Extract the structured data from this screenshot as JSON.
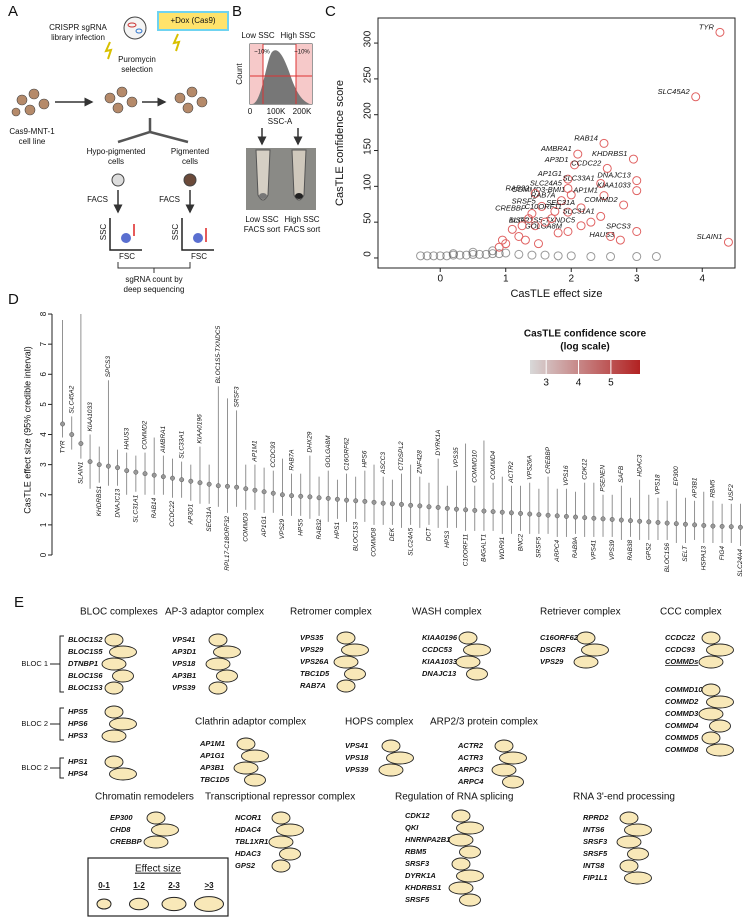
{
  "panel_a": {
    "label": "A",
    "infection": [
      "CRISPR sgRNA",
      "library infection"
    ],
    "dox": "+Dox (Cas9)",
    "selection": [
      "Puromycin",
      "selection"
    ],
    "cell_line": [
      "Cas9-MNT-1",
      "cell line"
    ],
    "hypo": [
      "Hypo-pigmented",
      "cells"
    ],
    "pigmented": [
      "Pigmented",
      "cells"
    ],
    "facs": [
      "FACS",
      "FACS"
    ],
    "ssc": [
      "SSC",
      "SSC"
    ],
    "fsc": [
      "FSC",
      "FSC"
    ],
    "sequencing": [
      "sgRNA count by",
      "deep sequencing"
    ]
  },
  "panel_b": {
    "label": "B",
    "low": "Low SSC",
    "high": "High SSC",
    "count": "Count",
    "fractions": [
      "~10%",
      "~10%"
    ],
    "xticks": [
      "0",
      "100K",
      "200K"
    ],
    "xlabel": "SSC-A",
    "sort_low": [
      "Low SSC",
      "FACS sort"
    ],
    "sort_high": [
      "High SSC",
      "FACS sort"
    ]
  },
  "chart_data": [
    {
      "type": "scatter",
      "panel_label": "C",
      "xlabel": "CasTLE effect size",
      "ylabel": "CasTLE confidence score",
      "xlim": [
        -0.95,
        4.5
      ],
      "ylim": [
        -14,
        335
      ],
      "xticks": [
        0,
        1,
        2,
        3,
        4
      ],
      "yticks": [
        0,
        50,
        100,
        150,
        200,
        250,
        300
      ],
      "series": [
        {
          "color": "#e06262",
          "x": [
            4.27,
            3.9,
            2.5,
            2.1,
            2.95,
            2.05,
            2.55,
            1.95,
            3.0,
            2.45,
            1.95,
            3.0,
            2.0,
            2.5,
            1.45,
            1.85,
            2.8,
            1.55,
            2.15,
            1.95,
            1.4,
            2.45,
            1.45,
            2.15,
            1.95,
            3.0,
            2.75,
            4.4,
            1.0,
            1.2,
            1.3,
            0.9,
            1.1,
            1.6,
            1.7,
            1.8,
            1.5,
            1.25,
            2.3,
            2.6,
            1.75,
            1.35,
            0.95
          ],
          "y": [
            315,
            225,
            160,
            145,
            138,
            130,
            125,
            110,
            108,
            104,
            97,
            94,
            88,
            87,
            90,
            80,
            74,
            72,
            70,
            64,
            62,
            58,
            45,
            45,
            37,
            37,
            25,
            22,
            20,
            30,
            25,
            15,
            40,
            50,
            55,
            35,
            20,
            45,
            50,
            30,
            65,
            55,
            25
          ],
          "labels": [
            "TYR",
            "SLC45A2",
            "RAB14",
            "AMBRA1",
            "KHDRBS1",
            "AP3D1",
            "CCDC22",
            "AP1G1",
            "DNAJC13",
            "SLC33A1",
            "SLC24A5",
            "KIAA1033",
            "COMMD3-BMI1",
            "AP1M1",
            "RAB32",
            "RAB7A",
            "COMMD2",
            "SRSF5",
            "SEC31A",
            "C10ORF11",
            "CREBBP",
            "SLC31A1",
            "USF2",
            "BLOC1S5-TXNDC5",
            "GOLGA8M",
            "SPCS3",
            "HAUS3",
            "SLAIN1",
            null,
            null,
            null,
            null,
            null,
            null,
            null,
            null,
            null,
            null,
            null,
            null,
            null,
            null,
            null
          ]
        },
        {
          "color": "#555555",
          "x": [
            -0.3,
            -0.2,
            -0.1,
            0,
            0.1,
            0.2,
            0.3,
            0.4,
            0.5,
            0.6,
            0.7,
            0.8,
            0.9,
            1.0,
            1.2,
            1.4,
            1.6,
            1.8,
            2.0,
            2.3,
            2.6,
            3.0,
            3.3,
            0.2,
            0.5,
            0.8
          ],
          "y": [
            3,
            3,
            3,
            3,
            3,
            4,
            4,
            4,
            5,
            5,
            5,
            6,
            6,
            7,
            5,
            4,
            4,
            3,
            3,
            2,
            2,
            2,
            2,
            6,
            8,
            10
          ]
        }
      ]
    },
    {
      "type": "errorbar",
      "panel_label": "D",
      "ylabel": "CasTLE effect size (95% credible interval)",
      "ylim": [
        0,
        8.3
      ],
      "yticks": [
        0,
        1,
        2,
        3,
        4,
        5,
        6,
        7,
        8
      ],
      "color": "#999999",
      "categories": [
        "TYR",
        "SLC45A2",
        "SLAIN1",
        "KIAA1033",
        "KHDRBS1",
        "SPCS3",
        "DNAJC13",
        "HAUS3",
        "SLC31A1",
        "COMMD2",
        "RAB14",
        "AMBRA1",
        "CCDC22",
        "SLC33A1",
        "AP3D1",
        "KIAA0196",
        "SEC31A",
        "BLOC1S5-TXNDC5",
        "RPL17-C18ORF32",
        "SRSF3",
        "COMMD3",
        "AP1M1",
        "AP1G1",
        "CCDC93",
        "VPS29",
        "RAB7A",
        "HPS5",
        "DHX29",
        "RAB32",
        "GOLGA8M",
        "HPS1",
        "C16ORF62",
        "BLOC1S3",
        "HPS6",
        "COMMD8",
        "ASCC3",
        "DEK",
        "CTDSPL2",
        "SLC24A5",
        "ZNF428",
        "DCT",
        "DYRK1A",
        "HPS3",
        "VPS35",
        "C10ORF11",
        "COMMD10",
        "B4GALT1",
        "COMMD4",
        "WDR91",
        "ACTR2",
        "BNC2",
        "VPS26A",
        "SRSF5",
        "CREBBP",
        "ARPC4",
        "VPS16",
        "RAB9A",
        "CDK12",
        "VPS41",
        "PSENEN",
        "VPS39",
        "SAFB",
        "RAB38",
        "HDAC3",
        "GPS2",
        "VPS18",
        "BLOC1S6",
        "EP300",
        "SELT",
        "AP3B1",
        "HSPA13",
        "RBM5",
        "FIG4",
        "USF2",
        "SLC24A4"
      ],
      "values": [
        4.35,
        4.0,
        3.7,
        3.1,
        3.0,
        2.95,
        2.9,
        2.8,
        2.75,
        2.7,
        2.65,
        2.6,
        2.55,
        2.5,
        2.45,
        2.4,
        2.35,
        2.3,
        2.28,
        2.25,
        2.2,
        2.15,
        2.1,
        2.05,
        2.0,
        1.97,
        1.95,
        1.93,
        1.9,
        1.88,
        1.85,
        1.82,
        1.8,
        1.78,
        1.75,
        1.72,
        1.7,
        1.68,
        1.65,
        1.63,
        1.6,
        1.58,
        1.55,
        1.52,
        1.5,
        1.48,
        1.46,
        1.44,
        1.42,
        1.4,
        1.38,
        1.36,
        1.34,
        1.32,
        1.3,
        1.28,
        1.26,
        1.24,
        1.22,
        1.2,
        1.18,
        1.16,
        1.14,
        1.12,
        1.1,
        1.08,
        1.06,
        1.04,
        1.02,
        1.0,
        0.98,
        0.96,
        0.95,
        0.94,
        0.92
      ],
      "low": [
        3.9,
        3.5,
        3.2,
        2.2,
        2.4,
        2.3,
        2.3,
        2.0,
        2.1,
        2.0,
        2.0,
        2.0,
        1.9,
        1.9,
        1.8,
        1.7,
        1.7,
        1.6,
        1.4,
        1.6,
        1.5,
        1.5,
        1.4,
        1.4,
        1.3,
        1.3,
        1.3,
        1.2,
        1.3,
        1.1,
        1.2,
        1.1,
        1.2,
        1.1,
        1.0,
        1.0,
        1.0,
        0.9,
        1.0,
        0.9,
        1.0,
        0.9,
        0.9,
        0.9,
        0.8,
        0.8,
        0.8,
        0.8,
        0.7,
        0.7,
        0.8,
        0.7,
        0.7,
        0.7,
        0.6,
        0.6,
        0.7,
        0.6,
        0.6,
        0.6,
        0.6,
        0.5,
        0.6,
        0.5,
        0.5,
        0.5,
        0.5,
        0.4,
        0.4,
        0.5,
        0.4,
        0.4,
        0.4,
        0.4,
        0.3
      ],
      "high": [
        7.8,
        4.6,
        8.0,
        4.0,
        3.6,
        5.8,
        3.5,
        3.4,
        3.3,
        3.4,
        3.9,
        3.3,
        3.2,
        3.1,
        3.0,
        3.6,
        3.0,
        5.6,
        5.2,
        4.8,
        3.0,
        3.0,
        2.9,
        2.8,
        3.2,
        2.7,
        2.7,
        3.3,
        2.6,
        2.8,
        2.5,
        2.7,
        2.6,
        2.8,
        3.0,
        2.6,
        2.5,
        2.7,
        3.0,
        2.6,
        2.4,
        3.2,
        2.3,
        2.8,
        3.7,
        2.3,
        3.8,
        2.4,
        2.6,
        2.3,
        2.3,
        2.4,
        2.2,
        2.6,
        2.2,
        2.2,
        2.1,
        2.4,
        2.4,
        2.0,
        2.0,
        2.3,
        1.9,
        2.5,
        2.0,
        1.9,
        1.8,
        2.2,
        1.9,
        1.8,
        2.1,
        1.8,
        1.7,
        1.7,
        1.7
      ],
      "label_colors": [
        "#d00",
        "#d00",
        "#000",
        "#000",
        "#000",
        "#000",
        "#000",
        "#000",
        "#000",
        "#000",
        "#000",
        "#d00",
        "#000",
        "#d00",
        "#d00",
        "#000",
        "#000",
        "#000",
        "#000",
        "#000",
        "#000",
        "#000",
        "#000",
        "#000",
        "#000",
        "#d00",
        "#d00",
        "#000",
        "#d00",
        "#000",
        "#d00",
        "#000",
        "#d00",
        "#d00",
        "#000",
        "#000",
        "#000",
        "#000",
        "#d00",
        "#000",
        "#d00",
        "#000",
        "#d00",
        "#000",
        "#000",
        "#000",
        "#000",
        "#000",
        "#000",
        "#000",
        "#d00",
        "#000",
        "#000",
        "#000",
        "#000",
        "#000",
        "#d00",
        "#000",
        "#000",
        "#d00",
        "#d00",
        "#000",
        "#d00",
        "#000",
        "#000",
        "#d00",
        "#d00",
        "#000",
        "#000",
        "#d00",
        "#000",
        "#000",
        "#d00",
        "#d00",
        "#d00"
      ],
      "colorbar": {
        "title": "CasTLE confidence score",
        "subtitle": "(log scale)",
        "lim": [
          2.5,
          5.9
        ],
        "ticks": [
          3,
          4,
          5
        ],
        "colors": [
          "#d8d8d8",
          "#b22222"
        ]
      }
    }
  ],
  "panel_e": {
    "label": "E",
    "complexes": [
      {
        "title": "BLOC complexes",
        "groups": [
          {
            "name": "BLOC 1",
            "genes": [
              "BLOC1S2",
              "BLOC1S5",
              "DTNBP1",
              "BLOC1S6",
              "BLOC1S3"
            ]
          },
          {
            "name": "BLOC 2",
            "genes": [
              "HPS5",
              "HPS6",
              "HPS3"
            ]
          },
          {
            "name": "BLOC 2",
            "genes": [
              "HPS1",
              "HPS4"
            ]
          }
        ]
      },
      {
        "title": "AP-3 adaptor complex",
        "groups": [
          {
            "genes": [
              "VPS41",
              "AP3D1",
              "VPS18",
              "AP3B1",
              "VPS39"
            ]
          }
        ]
      },
      {
        "title": "Retromer complex",
        "groups": [
          {
            "genes": [
              "VPS35",
              "VPS29",
              "VPS26A",
              "TBC1D5",
              "RAB7A"
            ]
          }
        ]
      },
      {
        "title": "WASH complex",
        "groups": [
          {
            "genes": [
              "KIAA0196",
              "CCDC53",
              "KIAA1033",
              "DNAJC13"
            ]
          }
        ]
      },
      {
        "title": "Retriever complex",
        "groups": [
          {
            "genes": [
              "C16ORF62",
              "DSCR3",
              "VPS29"
            ]
          }
        ]
      },
      {
        "title": "CCC complex",
        "groups": [
          {
            "genes": [
              "CCDC22",
              "CCDC93",
              "COMMDs"
            ]
          },
          {
            "genes": [
              "COMMD10",
              "COMMD2",
              "COMMD3",
              "COMMD4",
              "COMMD5",
              "COMMD8"
            ]
          }
        ]
      },
      {
        "title": "Clathrin adaptor complex",
        "groups": [
          {
            "genes": [
              "AP1M1",
              "AP1G1",
              "AP3B1",
              "TBC1D5"
            ]
          }
        ]
      },
      {
        "title": "HOPS complex",
        "groups": [
          {
            "genes": [
              "VPS41",
              "VPS18",
              "VPS39"
            ]
          }
        ]
      },
      {
        "title": "ARP2/3 protein complex",
        "groups": [
          {
            "genes": [
              "ACTR2",
              "ACTR3",
              "ARPC3",
              "ARPC4"
            ]
          }
        ]
      },
      {
        "title": "Chromatin remodelers",
        "groups": [
          {
            "genes": [
              "EP300",
              "CHD8",
              "CREBBP"
            ]
          }
        ]
      },
      {
        "title": "Transcriptional repressor complex",
        "groups": [
          {
            "genes": [
              "NCOR1",
              "HDAC4",
              "TBL1XR1",
              "HDAC3",
              "GPS2"
            ]
          }
        ]
      },
      {
        "title": "Regulation of RNA splicing",
        "groups": [
          {
            "genes": [
              "CDK12",
              "QKI",
              "HNRNPA2B1",
              "RBM5",
              "SRSF3",
              "DYRK1A",
              "KHDRBS1",
              "SRSF5"
            ]
          }
        ]
      },
      {
        "title": "RNA 3'-end processing",
        "groups": [
          {
            "genes": [
              "RPRD2",
              "INTS6",
              "SRSF3",
              "SRSF5",
              "INTS8",
              "FIP1L1"
            ]
          }
        ]
      }
    ],
    "legend": {
      "title": "Effect size",
      "bins": [
        "0-1",
        "1-2",
        "2-3",
        ">3"
      ]
    }
  }
}
